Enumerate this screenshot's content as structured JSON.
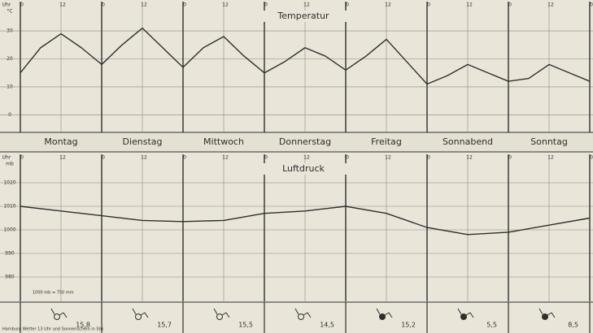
{
  "chart_data": [
    {
      "type": "line",
      "title": "Temperatur",
      "x_unit": "Uhr",
      "y_unit": "°C",
      "categories": [
        "Montag",
        "Dienstag",
        "Mittwoch",
        "Donnerstag",
        "Freitag",
        "Sonnabend",
        "Sonntag"
      ],
      "x": [
        0,
        6,
        12,
        18,
        24,
        30,
        36,
        42,
        48,
        54,
        60,
        66,
        72,
        78,
        84,
        90,
        96,
        102,
        108,
        114,
        120,
        126,
        132,
        138,
        144,
        150,
        156,
        162,
        168
      ],
      "series": [
        {
          "name": "Temperatur",
          "color": "#2f2f2d",
          "values": [
            15,
            24,
            29,
            24,
            18,
            25,
            31,
            24,
            17,
            24,
            28,
            21,
            15,
            19,
            24,
            21,
            16,
            21,
            27,
            19,
            11,
            14,
            18,
            15,
            12,
            13,
            18,
            15,
            12
          ]
        }
      ],
      "xlim": [
        0,
        168
      ],
      "xticks": [
        0,
        12,
        {
          "value": 24,
          "label": "0"
        },
        {
          "value": 36,
          "label": "12"
        },
        {
          "value": 48,
          "label": "0"
        },
        {
          "value": 60,
          "label": "12"
        },
        {
          "value": 72,
          "label": "0"
        },
        {
          "value": 84,
          "label": "12"
        },
        {
          "value": 96,
          "label": "0"
        },
        {
          "value": 108,
          "label": "12"
        },
        {
          "value": 120,
          "label": "0"
        },
        {
          "value": 132,
          "label": "12"
        },
        {
          "value": 144,
          "label": "0"
        },
        {
          "value": 156,
          "label": "12"
        },
        {
          "value": 168,
          "label": "0"
        }
      ],
      "ylim": [
        -6,
        37
      ],
      "yticks": [
        0,
        10,
        20,
        30
      ],
      "grid": true
    },
    {
      "type": "line",
      "title": "Luftdruck",
      "x_unit": "Uhr",
      "y_unit": "mb",
      "note": "1000 mb = 750 mm",
      "x": [
        0,
        12,
        24,
        36,
        48,
        60,
        72,
        84,
        96,
        108,
        120,
        132,
        144,
        156,
        168
      ],
      "series": [
        {
          "name": "Luftdruck",
          "color": "#2f2f2d",
          "values": [
            1010,
            1008,
            1006,
            1004,
            1003.5,
            1004,
            1007,
            1008,
            1010,
            1007,
            1001,
            998,
            999,
            1002,
            1005
          ]
        }
      ],
      "xlim": [
        0,
        168
      ],
      "xticks": [
        0,
        12,
        {
          "value": 24,
          "label": "0"
        },
        {
          "value": 36,
          "label": "12"
        },
        {
          "value": 48,
          "label": "0"
        },
        {
          "value": 60,
          "label": "12"
        },
        {
          "value": 72,
          "label": "0"
        },
        {
          "value": 84,
          "label": "12"
        },
        {
          "value": 96,
          "label": "0"
        },
        {
          "value": 108,
          "label": "12"
        },
        {
          "value": 120,
          "label": "0"
        },
        {
          "value": 132,
          "label": "12"
        },
        {
          "value": 144,
          "label": "0"
        },
        {
          "value": 156,
          "label": "12"
        },
        {
          "value": 168,
          "label": "0"
        }
      ],
      "ylim": [
        970,
        1030
      ],
      "yticks": [
        980,
        990,
        1000,
        1010,
        1020
      ],
      "grid": true
    },
    {
      "type": "text",
      "title": "Hamburg Wetter 13 Uhr und Sonnenschein in Std.",
      "values": [
        15.8,
        15.7,
        15.5,
        14.5,
        15.2,
        5.5,
        8.5
      ],
      "value_labels": [
        "15,8",
        "15,7",
        "15,5",
        "14,5",
        "15,2",
        "5,5",
        "8,5"
      ]
    }
  ]
}
